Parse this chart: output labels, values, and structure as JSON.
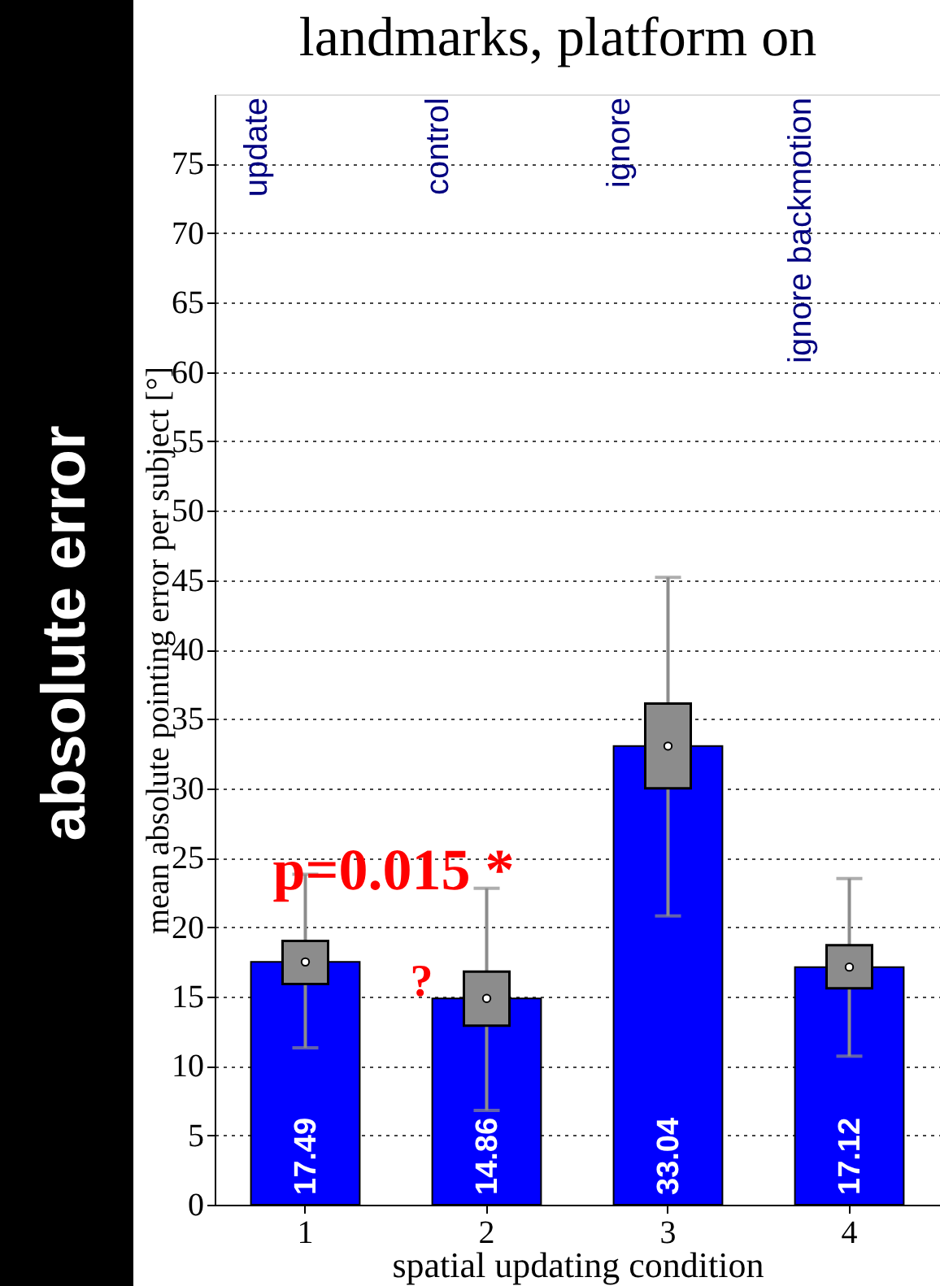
{
  "chart_data": {
    "type": "bar",
    "title": "landmarks,  platform on",
    "xlabel": "spatial updating condition",
    "ylabel": "mean absolute pointing error per subject [°]",
    "categories": [
      "1",
      "2",
      "3",
      "4"
    ],
    "series": [
      {
        "type": "bar",
        "color": "#0000ff",
        "values": [
          17.49,
          14.86,
          33.04,
          17.12
        ]
      },
      {
        "type": "box",
        "color": "#8c8c8c",
        "boxes": [
          {
            "low": 11.3,
            "q1": 15.9,
            "median": 17.49,
            "q3": 19.0,
            "high": 23.8
          },
          {
            "low": 6.8,
            "q1": 12.9,
            "median": 14.86,
            "q3": 16.8,
            "high": 22.8
          },
          {
            "low": 20.8,
            "q1": 30.0,
            "median": 33.04,
            "q3": 36.1,
            "high": 45.2
          },
          {
            "low": 10.7,
            "q1": 15.6,
            "median": 17.12,
            "q3": 18.7,
            "high": 23.5
          }
        ]
      }
    ],
    "data_labels": true,
    "ylim": [
      0,
      80
    ],
    "yticks": [
      0,
      5,
      10,
      15,
      20,
      25,
      30,
      35,
      40,
      45,
      50,
      55,
      60,
      65,
      70,
      75
    ],
    "grid": "y",
    "annotations": [
      "absolute error",
      "update",
      "control",
      "ignore",
      "ignore backmotion",
      {
        "text": "p=0.015 *",
        "x": "1",
        "y": 24
      },
      {
        "text": "?",
        "x": "2",
        "y": 16
      }
    ]
  }
}
